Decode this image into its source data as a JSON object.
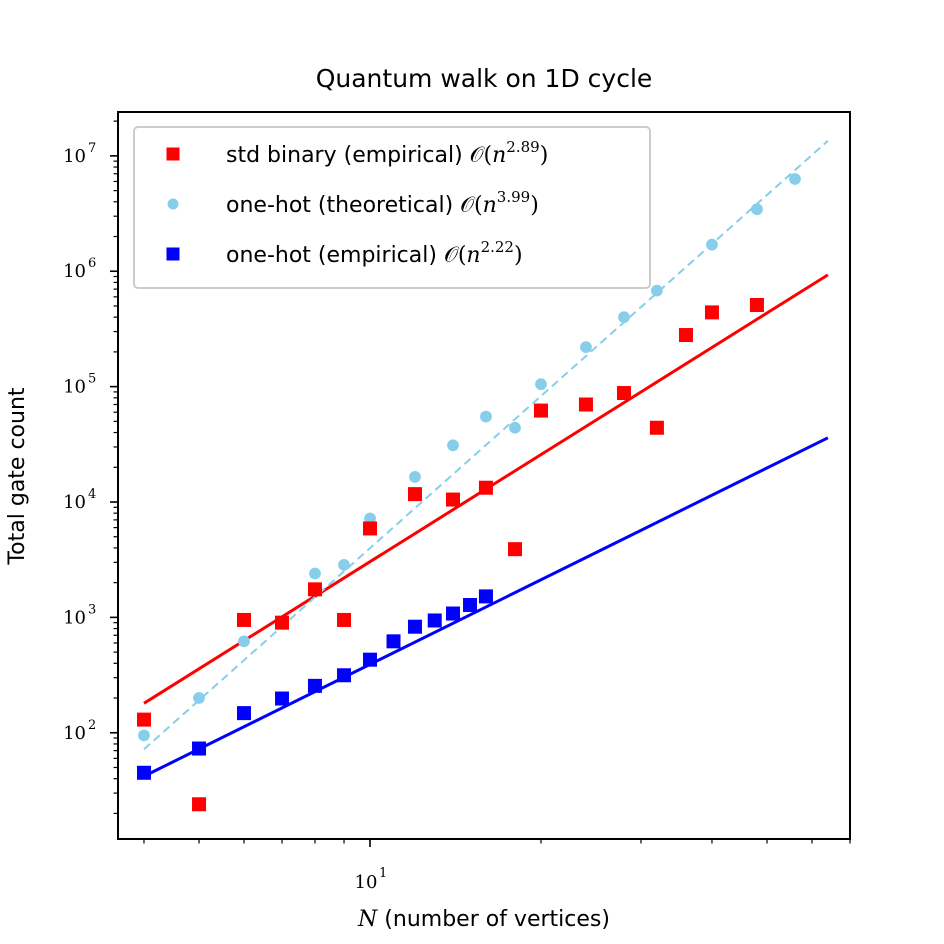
{
  "chart_data": {
    "type": "scatter",
    "title": "Quantum walk on 1D cycle",
    "xlabel_var": "N",
    "xlabel_text": " (number of vertices)",
    "ylabel": "Total gate count",
    "xscale": "log",
    "yscale": "log",
    "xlim": [
      3.6,
      70
    ],
    "ylim": [
      12,
      24000000
    ],
    "x_ticks": [
      {
        "base": "10",
        "exp": "1",
        "value": 10
      }
    ],
    "y_ticks": [
      {
        "base": "10",
        "exp": "2",
        "value": 100
      },
      {
        "base": "10",
        "exp": "3",
        "value": 1000
      },
      {
        "base": "10",
        "exp": "4",
        "value": 10000
      },
      {
        "base": "10",
        "exp": "5",
        "value": 100000
      },
      {
        "base": "10",
        "exp": "6",
        "value": 1000000
      },
      {
        "base": "10",
        "exp": "7",
        "value": 10000000
      }
    ],
    "legend_position": "upper-left",
    "grid": false,
    "series": [
      {
        "name": "std binary (empirical)",
        "big_o": "2.89",
        "marker": "square",
        "color": "#ff0000",
        "fit_style": "solid",
        "x": [
          4,
          5,
          6,
          7,
          8,
          9,
          10,
          12,
          14,
          16,
          18,
          20,
          24,
          28,
          32,
          36,
          40,
          48,
          56
        ],
        "y": [
          130,
          24,
          950,
          900,
          1750,
          950,
          5900,
          11700,
          10500,
          13300,
          3900,
          62000,
          70000,
          88000,
          44000,
          280000,
          440000,
          510000,
          null
        ],
        "fit": {
          "x": [
            4,
            64
          ],
          "y": [
            180,
            930000
          ]
        }
      },
      {
        "name": "one-hot (theoretical)",
        "big_o": "3.99",
        "marker": "circle",
        "color": "#87ceeb",
        "fit_style": "dashed",
        "x": [
          4,
          5,
          6,
          7,
          8,
          9,
          10,
          12,
          14,
          16,
          18,
          20,
          24,
          28,
          32,
          40,
          48,
          56
        ],
        "y": [
          95,
          200,
          620,
          900,
          2400,
          2850,
          7200,
          16500,
          31000,
          55000,
          44000,
          105000,
          220000,
          400000,
          680000,
          1700000,
          3450000,
          6300000
        ],
        "fit": {
          "x": [
            4,
            64
          ],
          "y": [
            72,
            13500000
          ]
        }
      },
      {
        "name": "one-hot (empirical)",
        "big_o": "2.22",
        "marker": "square",
        "color": "#0000ff",
        "fit_style": "solid",
        "x": [
          4,
          5,
          6,
          7,
          8,
          9,
          10,
          11,
          12,
          13,
          14,
          15,
          16
        ],
        "y": [
          45,
          73,
          148,
          198,
          255,
          315,
          430,
          620,
          830,
          940,
          1080,
          1280,
          1520
        ],
        "fit": {
          "x": [
            4,
            64
          ],
          "y": [
            42,
            36000
          ]
        }
      }
    ]
  }
}
